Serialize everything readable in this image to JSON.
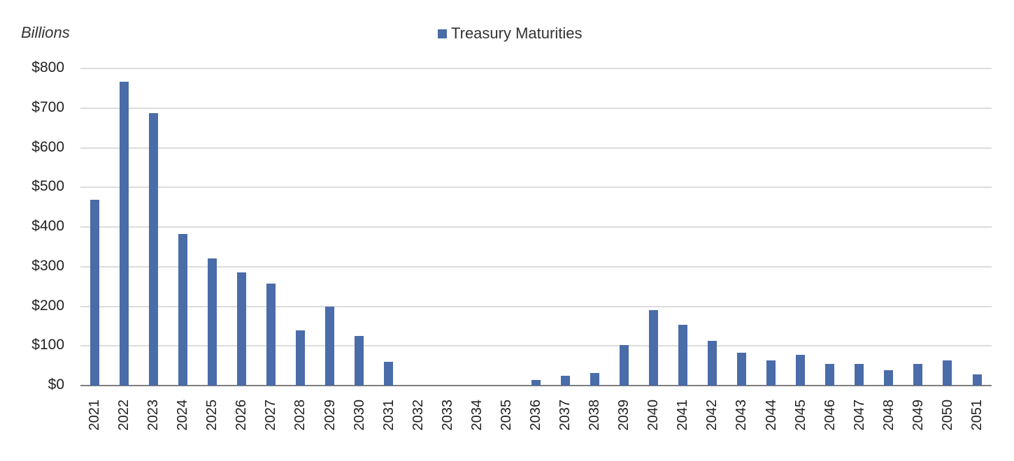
{
  "chart_data": {
    "type": "bar",
    "title": "",
    "xlabel": "",
    "ylabel": "Billions",
    "ylim": [
      0,
      800
    ],
    "yticks": [
      "$0",
      "$100",
      "$200",
      "$300",
      "$400",
      "$500",
      "$600",
      "$700",
      "$800"
    ],
    "grid": true,
    "legend_position": "top-center",
    "color": "#4a6ca8",
    "categories": [
      "2021",
      "2022",
      "2023",
      "2024",
      "2025",
      "2026",
      "2027",
      "2028",
      "2029",
      "2030",
      "2031",
      "2032",
      "2033",
      "2034",
      "2035",
      "2036",
      "2037",
      "2038",
      "2039",
      "2040",
      "2041",
      "2042",
      "2043",
      "2044",
      "2045",
      "2046",
      "2047",
      "2048",
      "2049",
      "2050",
      "2051"
    ],
    "series": [
      {
        "name": "Treasury Maturities",
        "values": [
          468,
          766,
          687,
          383,
          320,
          285,
          257,
          140,
          200,
          125,
          60,
          0,
          0,
          0,
          0,
          14,
          25,
          32,
          102,
          190,
          153,
          113,
          83,
          63,
          77,
          55,
          55,
          39,
          55,
          63,
          29
        ]
      }
    ]
  },
  "labels": {
    "unit": "Billions",
    "legend": "Treasury Maturities"
  }
}
